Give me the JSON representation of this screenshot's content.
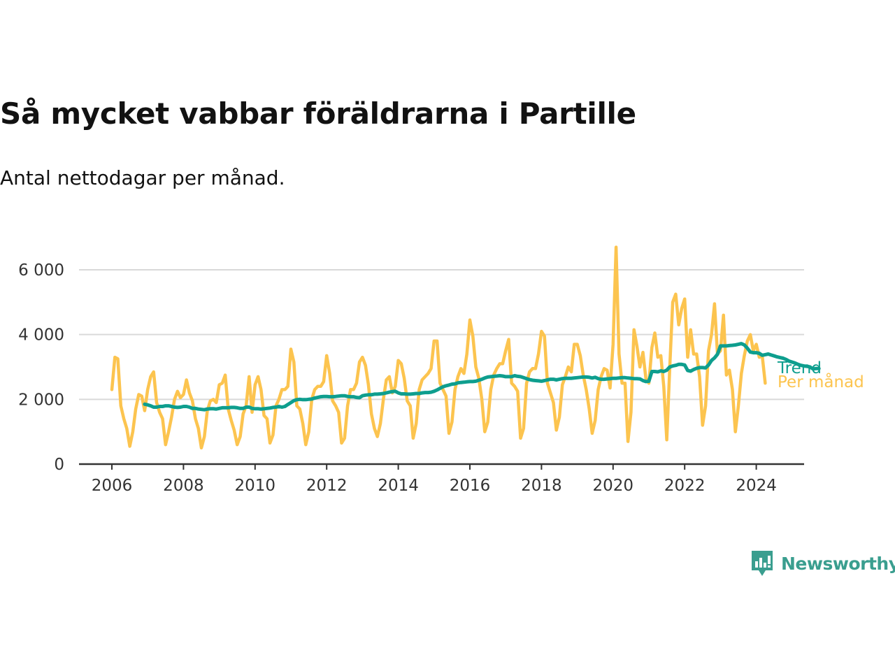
{
  "title": "Så mycket vabbar föräldrarna i Partille",
  "subtitle": "Antal nettodagar per månad.",
  "brand": "Newsworthy",
  "colors": {
    "trend": "#0e9e8e",
    "monthly": "#fcc44f",
    "grid": "#d9d9d9",
    "axis": "#333333",
    "brand": "#3a9e8f"
  },
  "chart_data": {
    "type": "line",
    "x_axis": {
      "min": 2006,
      "max": 2024.4,
      "ticks": [
        "2006",
        "2008",
        "2010",
        "2012",
        "2014",
        "2016",
        "2018",
        "2020",
        "2022",
        "2024"
      ]
    },
    "y_axis": {
      "min": 0,
      "max": 6000,
      "ticks": [
        0,
        2000,
        4000,
        6000
      ],
      "tick_labels": [
        "0",
        "2 000",
        "4 000",
        "6 000"
      ]
    },
    "grid": "horizontal",
    "series": [
      {
        "name": "Per månad",
        "color": "#fcc44f",
        "x_start": "2006-01",
        "values": [
          2300,
          3300,
          3250,
          1800,
          1400,
          1100,
          550,
          1000,
          1700,
          2150,
          2100,
          1650,
          2300,
          2700,
          2850,
          1900,
          1600,
          1400,
          600,
          1000,
          1450,
          2000,
          2250,
          2050,
          2150,
          2600,
          2200,
          1950,
          1400,
          1100,
          500,
          850,
          1650,
          1950,
          2000,
          1900,
          2450,
          2500,
          2750,
          1700,
          1350,
          1050,
          600,
          850,
          1550,
          1800,
          2700,
          1600,
          2450,
          2700,
          2300,
          1500,
          1400,
          650,
          900,
          1800,
          2000,
          2300,
          2300,
          2400,
          3550,
          3150,
          1800,
          1700,
          1250,
          600,
          1000,
          2000,
          2300,
          2400,
          2400,
          2550,
          3350,
          2800,
          1950,
          1800,
          1600,
          650,
          800,
          1800,
          2300,
          2300,
          2500,
          3150,
          3300,
          3050,
          2450,
          1550,
          1100,
          850,
          1250,
          2000,
          2600,
          2700,
          2200,
          2400,
          3200,
          3100,
          2650,
          1950,
          1800,
          800,
          1250,
          2300,
          2600,
          2700,
          2800,
          2950,
          3800,
          3800,
          2500,
          2300,
          2100,
          950,
          1300,
          2300,
          2700,
          2950,
          2800,
          3400,
          4450,
          3950,
          3000,
          2650,
          2000,
          1000,
          1300,
          2300,
          2750,
          2950,
          3100,
          3100,
          3500,
          3850,
          2500,
          2400,
          2250,
          800,
          1100,
          2500,
          2850,
          2950,
          2950,
          3400,
          4100,
          3950,
          2500,
          2200,
          1900,
          1050,
          1450,
          2450,
          2700,
          3000,
          2850,
          3700,
          3700,
          3350,
          2750,
          2300,
          1700,
          950,
          1350,
          2300,
          2700,
          2950,
          2900,
          2350,
          3700,
          6700,
          3400,
          2500,
          2500,
          700,
          1600,
          4150,
          3650,
          3000,
          3450,
          2650,
          2500,
          3600,
          4050,
          3300,
          3350,
          2400,
          750,
          3000,
          5000,
          5250,
          4300,
          4800,
          5100,
          3300,
          4150,
          3400,
          3400,
          2700,
          1200,
          1800,
          3500,
          4000,
          4950,
          3400,
          3500,
          4600,
          2750,
          2900,
          2300,
          1000,
          1800,
          2800,
          3350,
          3800,
          4000,
          3500,
          3700,
          3300,
          3350,
          2500
        ]
      },
      {
        "name": "Trend",
        "color": "#0e9e8e",
        "x_start": "2006-12",
        "values": [
          1850,
          1830,
          1800,
          1760,
          1760,
          1780,
          1780,
          1800,
          1800,
          1780,
          1760,
          1750,
          1760,
          1780,
          1780,
          1760,
          1720,
          1720,
          1700,
          1690,
          1680,
          1700,
          1710,
          1710,
          1700,
          1720,
          1740,
          1740,
          1740,
          1750,
          1750,
          1740,
          1720,
          1720,
          1760,
          1760,
          1720,
          1710,
          1710,
          1700,
          1710,
          1720,
          1730,
          1750,
          1760,
          1780,
          1760,
          1780,
          1840,
          1900,
          1960,
          1990,
          2000,
          1990,
          1990,
          2000,
          2010,
          2040,
          2060,
          2080,
          2090,
          2090,
          2080,
          2080,
          2090,
          2100,
          2110,
          2110,
          2090,
          2080,
          2080,
          2060,
          2050,
          2110,
          2130,
          2140,
          2140,
          2160,
          2160,
          2170,
          2180,
          2200,
          2220,
          2240,
          2250,
          2200,
          2170,
          2170,
          2160,
          2160,
          2170,
          2180,
          2180,
          2200,
          2210,
          2210,
          2220,
          2250,
          2290,
          2340,
          2390,
          2420,
          2440,
          2470,
          2480,
          2510,
          2520,
          2530,
          2540,
          2550,
          2550,
          2560,
          2590,
          2620,
          2660,
          2690,
          2700,
          2710,
          2720,
          2730,
          2720,
          2700,
          2700,
          2700,
          2730,
          2710,
          2700,
          2670,
          2640,
          2610,
          2590,
          2580,
          2570,
          2560,
          2580,
          2600,
          2620,
          2620,
          2600,
          2620,
          2640,
          2650,
          2650,
          2650,
          2660,
          2670,
          2680,
          2690,
          2690,
          2680,
          2660,
          2680,
          2640,
          2620,
          2620,
          2630,
          2640,
          2650,
          2650,
          2660,
          2670,
          2670,
          2660,
          2650,
          2640,
          2640,
          2630,
          2580,
          2550,
          2560,
          2860,
          2860,
          2850,
          2880,
          2860,
          2900,
          3000,
          3030,
          3050,
          3080,
          3080,
          3060,
          2890,
          2870,
          2920,
          2960,
          2980,
          2980,
          2970,
          3060,
          3200,
          3280,
          3390,
          3650,
          3650,
          3650,
          3660,
          3670,
          3680,
          3700,
          3720,
          3680,
          3580,
          3460,
          3440,
          3440,
          3420,
          3360,
          3380,
          3400,
          3370,
          3340,
          3310,
          3290,
          3270,
          3230,
          3180,
          3150,
          3120,
          3080,
          3050,
          3030,
          3020,
          3000,
          2940,
          2950,
          2950
        ]
      }
    ],
    "series_labels": [
      "Trend",
      "Per månad"
    ]
  }
}
